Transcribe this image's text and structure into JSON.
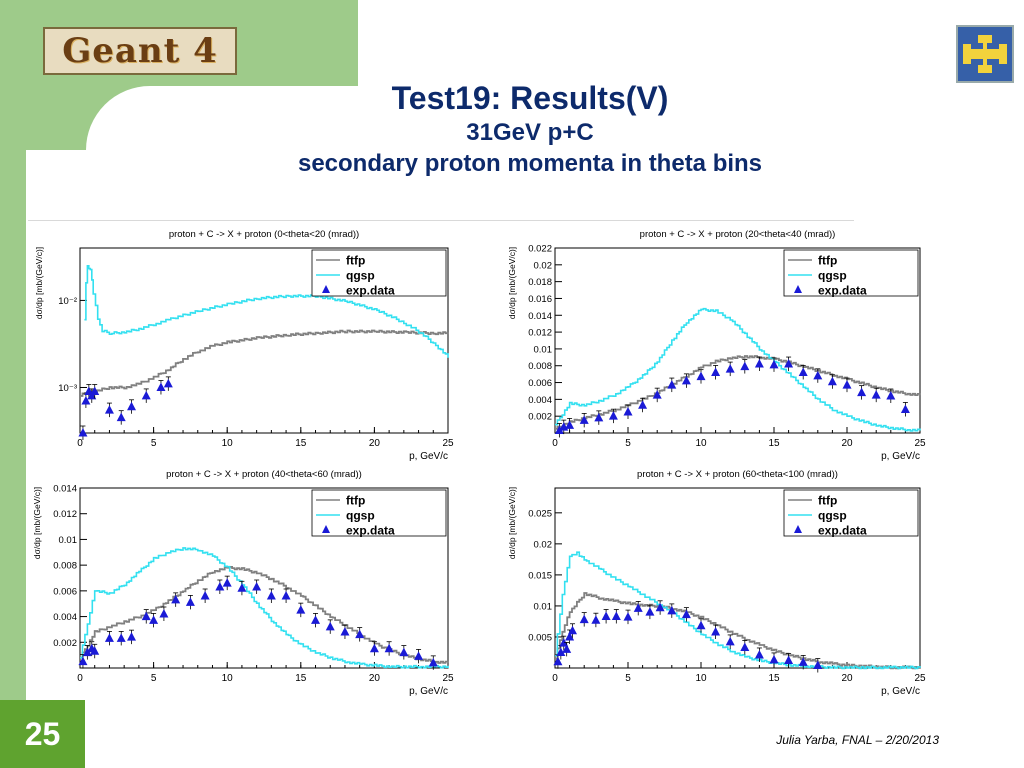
{
  "logo_text": "Geant 4",
  "title": "Test19: Results(V)",
  "subtitle1": "31GeV p+C",
  "subtitle2": "secondary proton momenta in theta bins",
  "page_number": "25",
  "footer": "Julia Yarba, FNAL – 2/20/2013",
  "colors": {
    "ftfp": "#808080",
    "qgsp": "#33e0f0",
    "data": "#1a1ad6",
    "title": "#0d2a6b",
    "accent_green": "#9ecb8a",
    "page_green": "#5fa32f"
  },
  "chart_data": [
    {
      "type": "line",
      "title": "proton + C -> X + proton  (0<theta<20 (mrad))",
      "xlabel": "p, GeV/c",
      "ylabel": "dσ/dp  [mb/(GeV/c)]",
      "xlim": [
        0,
        25
      ],
      "ylim": [
        0.0003,
        0.04
      ],
      "yscale": "log",
      "xticks": [
        0,
        5,
        10,
        15,
        20,
        25
      ],
      "yticks": [
        0.001,
        0.01
      ],
      "ytick_labels": [
        "10⁻³",
        "10⁻²"
      ],
      "legend": [
        "ftfp",
        "qgsp",
        "exp.data"
      ],
      "series": [
        {
          "name": "ftfp",
          "x": [
            0,
            0.5,
            1,
            2,
            3,
            4,
            5,
            6,
            7,
            8,
            9,
            10,
            12,
            14,
            16,
            18,
            20,
            22,
            24,
            25
          ],
          "y": [
            0.0008,
            0.0009,
            0.0009,
            0.001,
            0.001,
            0.0011,
            0.0013,
            0.0016,
            0.0021,
            0.0026,
            0.003,
            0.0033,
            0.0037,
            0.004,
            0.0042,
            0.0044,
            0.0044,
            0.0043,
            0.0042,
            0.0042
          ]
        },
        {
          "name": "qgsp",
          "x": [
            0.3,
            0.5,
            0.7,
            0.9,
            1.2,
            1.5,
            2,
            3,
            4,
            5,
            6,
            8,
            10,
            12,
            14,
            16,
            18,
            20,
            22,
            24,
            25
          ],
          "y": [
            0.006,
            0.025,
            0.022,
            0.012,
            0.006,
            0.0045,
            0.0042,
            0.0043,
            0.0047,
            0.0053,
            0.006,
            0.0075,
            0.009,
            0.0105,
            0.0112,
            0.0112,
            0.0098,
            0.0078,
            0.0055,
            0.0032,
            0.0022
          ]
        },
        {
          "name": "exp.data",
          "x": [
            0.2,
            0.4,
            0.6,
            0.8,
            1.0,
            2.0,
            2.8,
            3.5,
            4.5,
            5.5,
            6.0
          ],
          "y": [
            0.0003,
            0.0007,
            0.0009,
            0.0008,
            0.0009,
            0.00055,
            0.00045,
            0.0006,
            0.0008,
            0.001,
            0.0011
          ]
        }
      ]
    },
    {
      "type": "line",
      "title": "proton + C -> X + proton  (20<theta<40 (mrad))",
      "xlabel": "p, GeV/c",
      "ylabel": "dσ/dp  [mb/(GeV/c)]",
      "xlim": [
        0,
        25
      ],
      "ylim": [
        0,
        0.022
      ],
      "yscale": "linear",
      "xticks": [
        0,
        5,
        10,
        15,
        20,
        25
      ],
      "yticks": [
        0.002,
        0.004,
        0.006,
        0.008,
        0.01,
        0.012,
        0.014,
        0.016,
        0.018,
        0.02,
        0.022
      ],
      "ytick_labels": [
        "0.002",
        "0.004",
        "0.006",
        "0.008",
        "0.01",
        "0.012",
        "0.014",
        "0.016",
        "0.018",
        "0.02",
        "0.022"
      ],
      "legend": [
        "ftfp",
        "qgsp",
        "exp.data"
      ],
      "series": [
        {
          "name": "ftfp",
          "x": [
            0,
            1,
            2,
            3,
            4,
            5,
            6,
            7,
            8,
            9,
            10,
            11,
            12,
            13,
            14,
            15,
            16,
            17,
            18,
            19,
            20,
            21,
            22,
            23,
            24,
            25
          ],
          "y": [
            0.0005,
            0.0013,
            0.0018,
            0.0022,
            0.0027,
            0.0033,
            0.004,
            0.0048,
            0.0058,
            0.0068,
            0.0078,
            0.0085,
            0.0089,
            0.0091,
            0.009,
            0.0088,
            0.0084,
            0.0079,
            0.0074,
            0.0069,
            0.0064,
            0.0059,
            0.0054,
            0.005,
            0.0047,
            0.0045
          ]
        },
        {
          "name": "qgsp",
          "x": [
            0,
            1,
            2,
            3,
            4,
            5,
            6,
            7,
            8,
            9,
            10,
            11,
            12,
            13,
            14,
            15,
            16,
            17,
            18,
            19,
            20,
            21,
            22,
            23,
            24,
            25
          ],
          "y": [
            0.001,
            0.0035,
            0.0033,
            0.0038,
            0.0045,
            0.0055,
            0.0068,
            0.0085,
            0.011,
            0.0132,
            0.0147,
            0.0145,
            0.0135,
            0.0118,
            0.01,
            0.0085,
            0.007,
            0.0055,
            0.004,
            0.0028,
            0.002,
            0.0014,
            0.0009,
            0.0006,
            0.0004,
            0.0003
          ]
        },
        {
          "name": "exp.data",
          "x": [
            0.3,
            0.6,
            1.0,
            2.0,
            3.0,
            4.0,
            5.0,
            6.0,
            7.0,
            8.0,
            9.0,
            10.0,
            11.0,
            12.0,
            13.0,
            14.0,
            15.0,
            16.0,
            17.0,
            18.0,
            19.0,
            20.0,
            21.0,
            22.0,
            23.0,
            24.0
          ],
          "y": [
            0.0003,
            0.0007,
            0.0009,
            0.0015,
            0.0018,
            0.002,
            0.0025,
            0.0033,
            0.0045,
            0.0057,
            0.0062,
            0.0067,
            0.0072,
            0.0076,
            0.0079,
            0.0082,
            0.0081,
            0.0082,
            0.0072,
            0.0068,
            0.0061,
            0.0057,
            0.0048,
            0.0045,
            0.0044,
            0.0028
          ]
        }
      ]
    },
    {
      "type": "line",
      "title": "proton + C -> X + proton  (40<theta<60 (mrad))",
      "xlabel": "p, GeV/c",
      "ylabel": "dσ/dp  [mb/(GeV/c)]",
      "xlim": [
        0,
        25
      ],
      "ylim": [
        0,
        0.014
      ],
      "yscale": "linear",
      "xticks": [
        0,
        5,
        10,
        15,
        20,
        25
      ],
      "yticks": [
        0.002,
        0.004,
        0.006,
        0.008,
        0.01,
        0.012,
        0.014
      ],
      "ytick_labels": [
        "0.002",
        "0.004",
        "0.006",
        "0.008",
        "0.01",
        "0.012",
        "0.014"
      ],
      "legend": [
        "ftfp",
        "qgsp",
        "exp.data"
      ],
      "series": [
        {
          "name": "ftfp",
          "x": [
            0,
            1,
            2,
            3,
            4,
            5,
            6,
            7,
            8,
            9,
            10,
            11,
            12,
            13,
            14,
            15,
            16,
            17,
            18,
            19,
            20,
            21,
            22,
            23,
            24,
            25
          ],
          "y": [
            0.0008,
            0.0028,
            0.0032,
            0.0036,
            0.004,
            0.0045,
            0.0052,
            0.006,
            0.0068,
            0.0075,
            0.0078,
            0.0077,
            0.0074,
            0.0069,
            0.0063,
            0.0056,
            0.0048,
            0.004,
            0.0033,
            0.0026,
            0.0019,
            0.0014,
            0.001,
            0.0007,
            0.0005,
            0.0004
          ]
        },
        {
          "name": "qgsp",
          "x": [
            0,
            0.5,
            1,
            2,
            3,
            4,
            5,
            6,
            7,
            8,
            9,
            10,
            11,
            12,
            13,
            14,
            15,
            16,
            17,
            18,
            19,
            20,
            21,
            22,
            23,
            24,
            25
          ],
          "y": [
            0.0008,
            0.0035,
            0.006,
            0.0058,
            0.0065,
            0.0075,
            0.0085,
            0.009,
            0.0093,
            0.0092,
            0.0087,
            0.0078,
            0.0065,
            0.005,
            0.0037,
            0.0026,
            0.0018,
            0.0012,
            0.0008,
            0.0005,
            0.0003,
            0.0002,
            0.0001,
            0.0001,
            0.0001,
            0.0001,
            0.0001
          ]
        },
        {
          "name": "exp.data",
          "x": [
            0.2,
            0.5,
            0.8,
            1.0,
            2.0,
            2.8,
            3.5,
            4.5,
            5.0,
            5.7,
            6.5,
            7.5,
            8.5,
            9.5,
            10.0,
            11.0,
            12.0,
            13.0,
            14.0,
            15.0,
            16.0,
            17.0,
            18.0,
            19.0,
            20.0,
            21.0,
            22.0,
            23.0,
            24.0
          ],
          "y": [
            0.0005,
            0.0012,
            0.0015,
            0.0013,
            0.0023,
            0.0023,
            0.0024,
            0.004,
            0.0037,
            0.0042,
            0.0053,
            0.0051,
            0.0056,
            0.0063,
            0.0066,
            0.0062,
            0.0063,
            0.0056,
            0.0056,
            0.0045,
            0.0037,
            0.0032,
            0.0028,
            0.0026,
            0.0015,
            0.0015,
            0.0012,
            0.0009,
            0.0004
          ]
        }
      ]
    },
    {
      "type": "line",
      "title": "proton + C -> X + proton  (60<theta<100 (mrad))",
      "xlabel": "p, GeV/c",
      "ylabel": "dσ/dp  [mb/(GeV/c)]",
      "xlim": [
        0,
        25
      ],
      "ylim": [
        0,
        0.029
      ],
      "yscale": "linear",
      "xticks": [
        0,
        5,
        10,
        15,
        20,
        25
      ],
      "yticks": [
        0.005,
        0.01,
        0.015,
        0.02,
        0.025
      ],
      "ytick_labels": [
        "0.005",
        "0.01",
        "0.015",
        "0.02",
        "0.025"
      ],
      "legend": [
        "ftfp",
        "qgsp",
        "exp.data"
      ],
      "series": [
        {
          "name": "ftfp",
          "x": [
            0,
            0.5,
            1,
            2,
            3,
            4,
            5,
            6,
            7,
            8,
            9,
            10,
            11,
            12,
            13,
            14,
            15,
            16,
            17,
            18,
            19,
            20,
            21,
            22,
            23,
            24,
            25
          ],
          "y": [
            0.0015,
            0.006,
            0.009,
            0.012,
            0.0113,
            0.0108,
            0.0104,
            0.0101,
            0.01,
            0.0096,
            0.009,
            0.0081,
            0.007,
            0.0058,
            0.0047,
            0.0037,
            0.0028,
            0.0021,
            0.0015,
            0.001,
            0.0007,
            0.0004,
            0.0003,
            0.0002,
            0.0001,
            0.0001,
            0.0001
          ]
        },
        {
          "name": "qgsp",
          "x": [
            0,
            0.5,
            1,
            1.5,
            2,
            3,
            4,
            5,
            6,
            7,
            8,
            9,
            10,
            11,
            12,
            13,
            14,
            15,
            16,
            17,
            18,
            19,
            20,
            21,
            22,
            23,
            24,
            25
          ],
          "y": [
            0.002,
            0.012,
            0.018,
            0.0185,
            0.0175,
            0.016,
            0.0145,
            0.0132,
            0.0118,
            0.0104,
            0.009,
            0.0072,
            0.0055,
            0.004,
            0.0028,
            0.0018,
            0.0012,
            0.0008,
            0.0005,
            0.0003,
            0.0002,
            0.0001,
            0.0001,
            0.0001,
            0.0001,
            0.0001,
            0.0001,
            0.0001
          ]
        },
        {
          "name": "exp.data",
          "x": [
            0.2,
            0.4,
            0.6,
            0.8,
            1.0,
            1.2,
            2.0,
            2.8,
            3.5,
            4.2,
            5.0,
            5.7,
            6.5,
            7.2,
            8.0,
            9.0,
            10.0,
            11.0,
            12.0,
            13.0,
            14.0,
            15.0,
            16.0,
            17.0,
            18.0
          ],
          "y": [
            0.001,
            0.0025,
            0.004,
            0.003,
            0.005,
            0.006,
            0.0078,
            0.0077,
            0.0083,
            0.0083,
            0.0082,
            0.0096,
            0.009,
            0.0097,
            0.0092,
            0.0086,
            0.0068,
            0.0058,
            0.0042,
            0.0033,
            0.0021,
            0.0013,
            0.0012,
            0.0009,
            0.0004
          ]
        }
      ]
    }
  ]
}
